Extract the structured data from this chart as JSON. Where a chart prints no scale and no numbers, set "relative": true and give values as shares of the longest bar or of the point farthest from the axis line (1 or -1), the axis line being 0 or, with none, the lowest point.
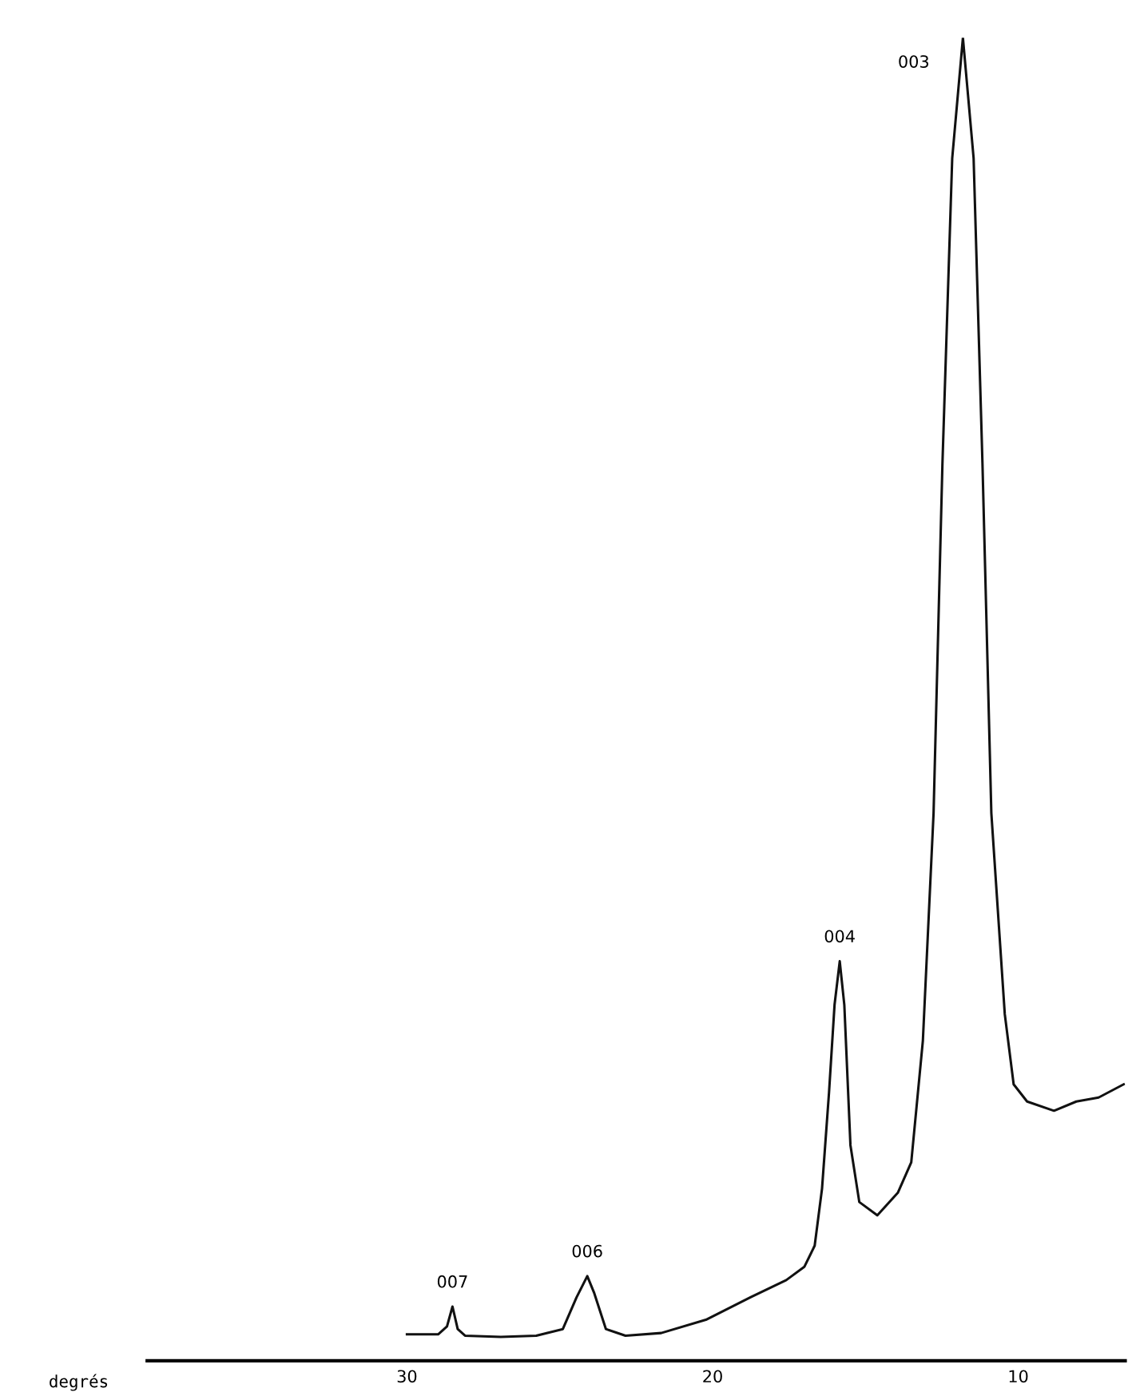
{
  "chart_data": {
    "type": "line",
    "relative": true,
    "xlabel": "degrés",
    "x": [
      30.0,
      28.98,
      28.69,
      28.51,
      28.34,
      28.1,
      26.93,
      25.77,
      24.9,
      24.45,
      24.1,
      23.87,
      23.49,
      22.85,
      21.68,
      20.22,
      18.76,
      17.59,
      17.0,
      16.66,
      16.42,
      16.19,
      16.01,
      15.84,
      15.69,
      15.49,
      15.2,
      14.61,
      13.94,
      13.5,
      13.12,
      12.77,
      12.48,
      12.16,
      11.81,
      11.46,
      11.17,
      10.88,
      10.44,
      10.15,
      9.71,
      8.83,
      8.1,
      7.37,
      6.55
    ],
    "series": [
      {
        "color": "#111111",
        "values": [
          0.02,
          0.02,
          0.026,
          0.041,
          0.024,
          0.019,
          0.018,
          0.019,
          0.024,
          0.048,
          0.064,
          0.051,
          0.024,
          0.019,
          0.021,
          0.031,
          0.048,
          0.061,
          0.071,
          0.087,
          0.13,
          0.203,
          0.269,
          0.302,
          0.269,
          0.163,
          0.12,
          0.11,
          0.127,
          0.15,
          0.242,
          0.414,
          0.678,
          0.909,
          1.0,
          0.909,
          0.678,
          0.414,
          0.262,
          0.209,
          0.196,
          0.189,
          0.196,
          0.199,
          0.209
        ]
      }
    ],
    "xlim": [
      38.5,
      6.5
    ],
    "xticks": [
      30,
      20,
      10
    ],
    "annotations": [
      {
        "text": "003",
        "x": 11.81,
        "y": 1.0
      },
      {
        "text": "004",
        "x": 15.84,
        "y": 0.302
      },
      {
        "text": "006",
        "x": 24.1,
        "y": 0.064
      },
      {
        "text": "007",
        "x": 28.51,
        "y": 0.041
      }
    ]
  }
}
